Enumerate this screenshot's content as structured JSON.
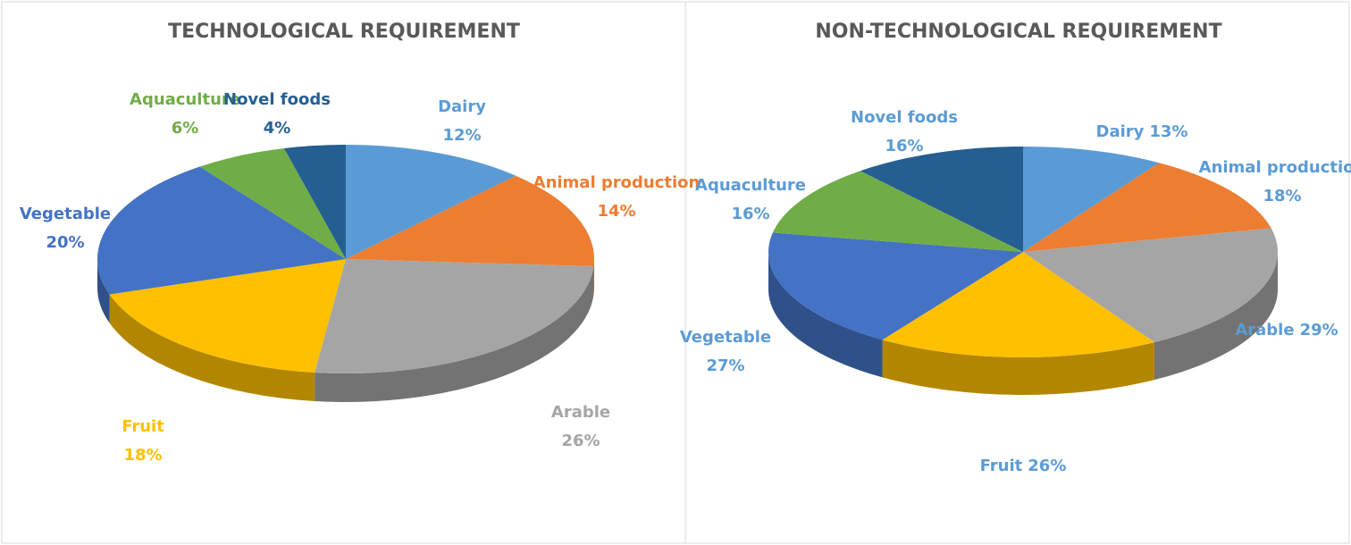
{
  "chart_data": [
    {
      "type": "pie",
      "title": "TECHNOLOGICAL REQUIREMENT",
      "categories": [
        "Dairy",
        "Animal production",
        "Arable",
        "Fruit",
        "Vegetable",
        "Aquaculture",
        "Novel foods"
      ],
      "values": [
        12,
        14,
        26,
        18,
        20,
        6,
        4
      ],
      "value_labels": [
        "12%",
        "14%",
        "26%",
        "18%",
        "20%",
        "6%",
        "4%"
      ],
      "colors": [
        "#5b9bd5",
        "#ed7d31",
        "#a5a5a5",
        "#ffc000",
        "#4472c4",
        "#70ad47",
        "#255e91"
      ]
    },
    {
      "type": "pie",
      "title": "NON-TECHNOLOGICAL REQUIREMENT",
      "categories": [
        "Dairy",
        "Animal production",
        "Arable",
        "Fruit",
        "Vegetable",
        "Aquaculture",
        "Novel foods"
      ],
      "values": [
        13,
        18,
        29,
        26,
        27,
        16,
        16
      ],
      "value_labels": [
        "13%",
        "18%",
        "29%",
        "26%",
        "27%",
        "16%",
        "16%"
      ],
      "colors": [
        "#5b9bd5",
        "#ed7d31",
        "#a5a5a5",
        "#ffc000",
        "#4472c4",
        "#70ad47",
        "#255e91"
      ],
      "label_color": "#5b9bd5"
    }
  ]
}
